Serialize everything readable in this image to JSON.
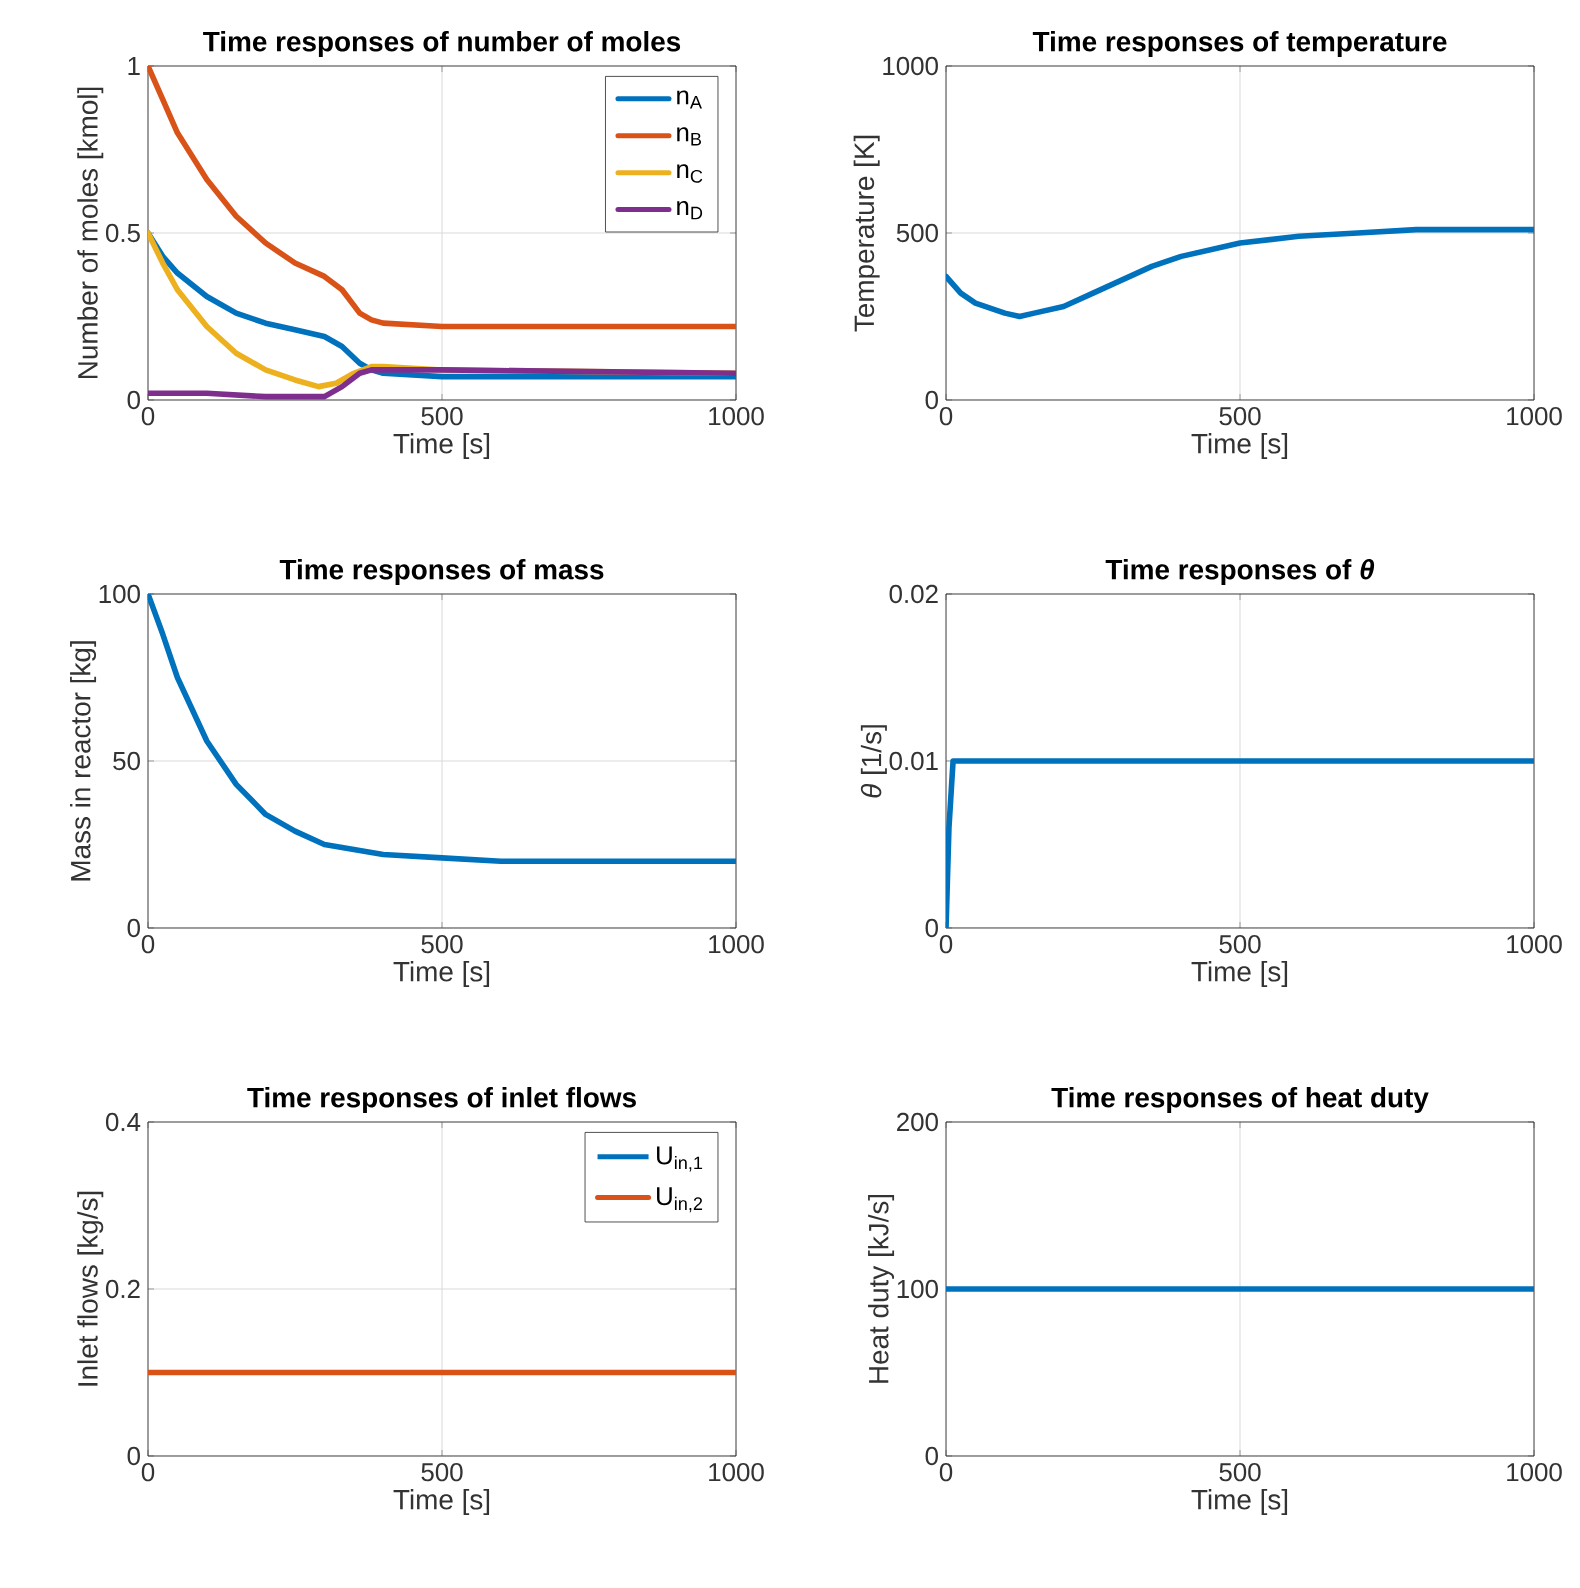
{
  "chart_data": [
    {
      "type": "line",
      "title": "Time responses of number of moles",
      "xlabel": "Time [s]",
      "ylabel": "Number of moles [kmol]",
      "xlim": [
        0,
        1000
      ],
      "ylim": [
        0,
        1
      ],
      "xticks": [
        0,
        500,
        1000
      ],
      "yticks": [
        0,
        0.5,
        1
      ],
      "grid": true,
      "legend": "top right",
      "series": [
        {
          "name": "n$_{A}$",
          "color": "#0072bd",
          "x": [
            0,
            25,
            50,
            100,
            150,
            200,
            250,
            300,
            330,
            360,
            380,
            400,
            500,
            1000
          ],
          "values": [
            0.5,
            0.43,
            0.38,
            0.31,
            0.26,
            0.23,
            0.21,
            0.19,
            0.16,
            0.11,
            0.09,
            0.08,
            0.07,
            0.07
          ]
        },
        {
          "name": "n$_{B}$",
          "color": "#d95319",
          "x": [
            0,
            25,
            50,
            100,
            150,
            200,
            250,
            300,
            330,
            360,
            380,
            400,
            500,
            1000
          ],
          "values": [
            1,
            0.9,
            0.8,
            0.66,
            0.55,
            0.47,
            0.41,
            0.37,
            0.33,
            0.26,
            0.24,
            0.23,
            0.22,
            0.22
          ]
        },
        {
          "name": "n$_{C}$",
          "color": "#edb120",
          "x": [
            0,
            25,
            50,
            100,
            150,
            200,
            250,
            290,
            320,
            350,
            380,
            400,
            500,
            1000
          ],
          "values": [
            0.5,
            0.41,
            0.33,
            0.22,
            0.14,
            0.09,
            0.06,
            0.04,
            0.05,
            0.08,
            0.1,
            0.1,
            0.09,
            0.08
          ]
        },
        {
          "name": "n$_{D}$",
          "color": "#7e2f8e",
          "x": [
            0,
            50,
            100,
            200,
            250,
            300,
            330,
            360,
            380,
            400,
            500,
            1000
          ],
          "values": [
            0.02,
            0.02,
            0.02,
            0.01,
            0.01,
            0.01,
            0.04,
            0.08,
            0.09,
            0.09,
            0.09,
            0.08
          ]
        }
      ]
    },
    {
      "type": "line",
      "title": "Time responses of temperature",
      "xlabel": "Time [s]",
      "ylabel": "Temperature [K]",
      "xlim": [
        0,
        1000
      ],
      "ylim": [
        0,
        1000
      ],
      "xticks": [
        0,
        500,
        1000
      ],
      "yticks": [
        0,
        500,
        1000
      ],
      "grid": true,
      "series": [
        {
          "color": "#0072bd",
          "x": [
            0,
            25,
            50,
            100,
            125,
            150,
            200,
            250,
            300,
            350,
            400,
            500,
            600,
            700,
            800,
            1000
          ],
          "values": [
            370,
            320,
            290,
            260,
            250,
            260,
            280,
            320,
            360,
            400,
            430,
            470,
            490,
            500,
            510,
            510
          ]
        }
      ]
    },
    {
      "type": "line",
      "title": "Time responses of mass",
      "xlabel": "Time [s]",
      "ylabel": "Mass in reactor [kg]",
      "xlim": [
        0,
        1000
      ],
      "ylim": [
        0,
        100
      ],
      "xticks": [
        0,
        500,
        1000
      ],
      "yticks": [
        0,
        50,
        100
      ],
      "grid": true,
      "series": [
        {
          "color": "#0072bd",
          "x": [
            0,
            25,
            50,
            100,
            150,
            200,
            250,
            300,
            400,
            500,
            600,
            1000
          ],
          "values": [
            100,
            88,
            75,
            56,
            43,
            34,
            29,
            25,
            22,
            21,
            20,
            20
          ]
        }
      ]
    },
    {
      "type": "line",
      "title": "Time responses of *θ*",
      "xlabel": "Time [s]",
      "ylabel": "*θ* [1/s]",
      "xlim": [
        0,
        1000
      ],
      "ylim": [
        0,
        0.02
      ],
      "xticks": [
        0,
        500,
        1000
      ],
      "yticks": [
        0,
        0.01,
        0.02
      ],
      "grid": true,
      "series": [
        {
          "color": "#0072bd",
          "x": [
            0,
            5,
            12,
            1000
          ],
          "values": [
            0,
            0.006,
            0.01,
            0.01
          ]
        }
      ]
    },
    {
      "type": "line",
      "title": "Time responses of inlet flows",
      "xlabel": "Time [s]",
      "ylabel": "Inlet flows [kg/s]",
      "xlim": [
        0,
        1000
      ],
      "ylim": [
        0,
        0.4
      ],
      "xticks": [
        0,
        500,
        1000
      ],
      "yticks": [
        0,
        0.2,
        0.4
      ],
      "grid": true,
      "legend": "top right",
      "series": [
        {
          "name": "U$_{in,1}$",
          "color": "#0072bd",
          "values": [
            null,
            null
          ]
        },
        {
          "name": "U$_{in,2}$",
          "color": "#d95319",
          "x": [
            0,
            1000
          ],
          "values": [
            0.1,
            0.1
          ]
        }
      ]
    },
    {
      "type": "line",
      "title": "Time responses of heat duty",
      "xlabel": "Time [s]",
      "ylabel": "Heat duty [kJ/s]",
      "xlim": [
        0,
        1000
      ],
      "ylim": [
        0,
        200
      ],
      "xticks": [
        0,
        500,
        1000
      ],
      "yticks": [
        0,
        100,
        200
      ],
      "grid": true,
      "series": [
        {
          "color": "#0072bd",
          "x": [
            0,
            1000
          ],
          "values": [
            100,
            100
          ]
        }
      ]
    }
  ]
}
